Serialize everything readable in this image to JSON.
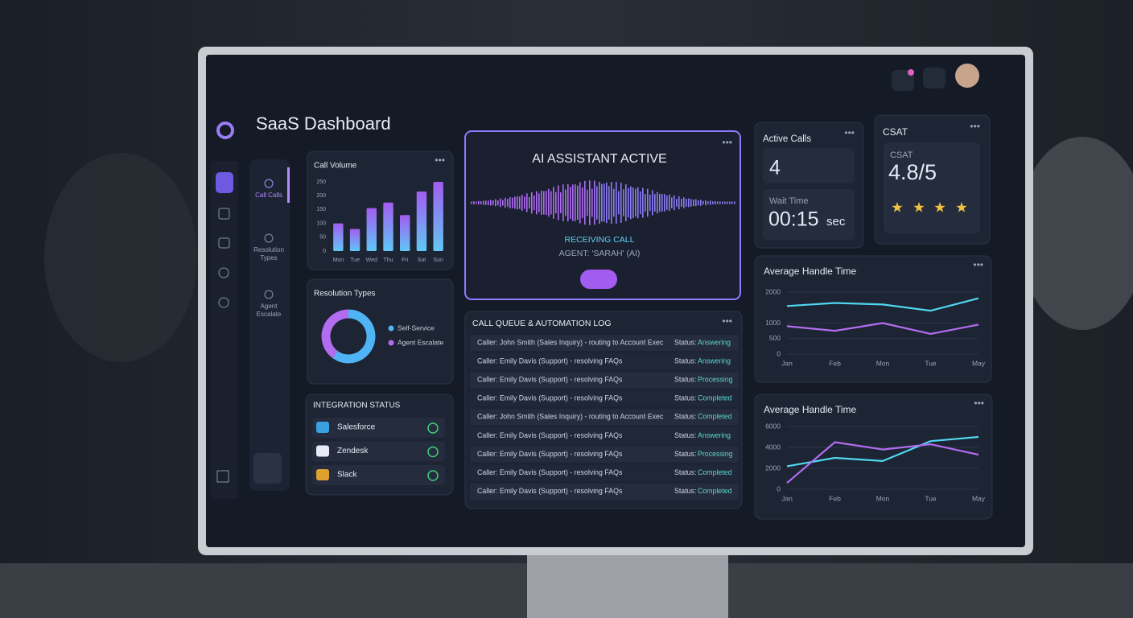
{
  "header": {
    "title": "SaaS Dashboard"
  },
  "sidebar": {
    "items": [
      [
        "Call Calls"
      ],
      [
        "Resolution",
        "Types"
      ],
      [
        "Agent",
        "Escalate"
      ]
    ]
  },
  "chart_data": [
    {
      "type": "bar",
      "title": "Call Volume",
      "categories": [
        "Mon",
        "Tue",
        "Wed",
        "Thu",
        "Fri",
        "Sat",
        "Sun"
      ],
      "values": [
        100,
        80,
        155,
        175,
        130,
        215,
        250
      ],
      "colors": [
        "#a25cf0",
        "#5fc8f5"
      ],
      "ylim": [
        0,
        250
      ],
      "yticks": [
        0,
        50,
        100,
        150,
        200,
        250
      ]
    },
    {
      "type": "pie",
      "title": "Resolution Types",
      "categories": [
        "Self-Service",
        "Agent Escalate"
      ],
      "values": [
        60,
        40
      ],
      "colors": [
        "#4fb3f5",
        "#b26cf0"
      ]
    },
    {
      "type": "line",
      "title": "Average Handle Time",
      "categories": [
        "Jan",
        "Feb",
        "Mon",
        "Tue",
        "May"
      ],
      "series": [
        {
          "color": "#4fd7f0",
          "values": [
            1550,
            1650,
            1600,
            1400,
            1800
          ]
        },
        {
          "color": "#b26cf0",
          "values": [
            900,
            750,
            1000,
            650,
            950
          ]
        }
      ],
      "ylim": [
        0,
        2000
      ],
      "yticks": [
        0,
        500,
        1000,
        2000
      ],
      "grid": true
    },
    {
      "type": "line",
      "title": "Average Handle Time",
      "categories": [
        "Jan",
        "Feb",
        "Mon",
        "Tue",
        "May"
      ],
      "series": [
        {
          "color": "#4fd7f0",
          "values": [
            2200,
            3000,
            2700,
            4600,
            5000
          ]
        },
        {
          "color": "#b26cf0",
          "values": [
            600,
            4500,
            3800,
            4300,
            3300
          ]
        }
      ],
      "ylim": [
        0,
        6000
      ],
      "yticks": [
        0,
        2000,
        4000,
        6000
      ],
      "grid": true
    }
  ],
  "integration_status": {
    "title": "INTEGRATION STATUS",
    "items": [
      "Salesforce",
      "Zendesk",
      "Slack"
    ]
  },
  "ai_assistant": {
    "title": "AI ASSISTANT ACTIVE",
    "status": "RECEIVING CALL",
    "agent": "AGENT: 'SARAH' (AI)"
  },
  "call_log": {
    "title": "CALL QUEUE & AUTOMATION LOG",
    "rows": [
      {
        "caller": "Caller: John Smith (Sales Inquiry) - routing to Account Exec",
        "label": "Status:",
        "status": "Answering"
      },
      {
        "caller": "Caller: Emily Davis (Support) - resolving FAQs",
        "label": "Status:",
        "status": "Answering"
      },
      {
        "caller": "Caller: Emily Davis (Support) - resolving FAQs",
        "label": "Status:",
        "status": "Processing"
      },
      {
        "caller": "Caller: Emily Davis (Support) - resolving FAQs",
        "label": "Status:",
        "status": "Completed"
      },
      {
        "caller": "Caller: John Smith (Sales Inquiry) - routing to Account Exec",
        "label": "Status:",
        "status": "Completed"
      },
      {
        "caller": "Caller: Emily Davis (Support) - resolving FAQs",
        "label": "Status:",
        "status": "Answering"
      },
      {
        "caller": "Caller: Emily Davis (Support) - resolving FAQs",
        "label": "Status:",
        "status": "Processing"
      },
      {
        "caller": "Caller: Emily Davis (Support) - resolving FAQs",
        "label": "Status:",
        "status": "Completed"
      },
      {
        "caller": "Caller: Emily Davis (Support) - resolving FAQs",
        "label": "Status:",
        "status": "Completed"
      }
    ]
  },
  "active_calls": {
    "title": "Active Calls",
    "value": 4
  },
  "wait_time": {
    "label": "Wait Time",
    "value": "00:15",
    "unit": "sec"
  },
  "csat": {
    "title": "CSAT",
    "label": "CSAT",
    "value": "4.8/5"
  }
}
